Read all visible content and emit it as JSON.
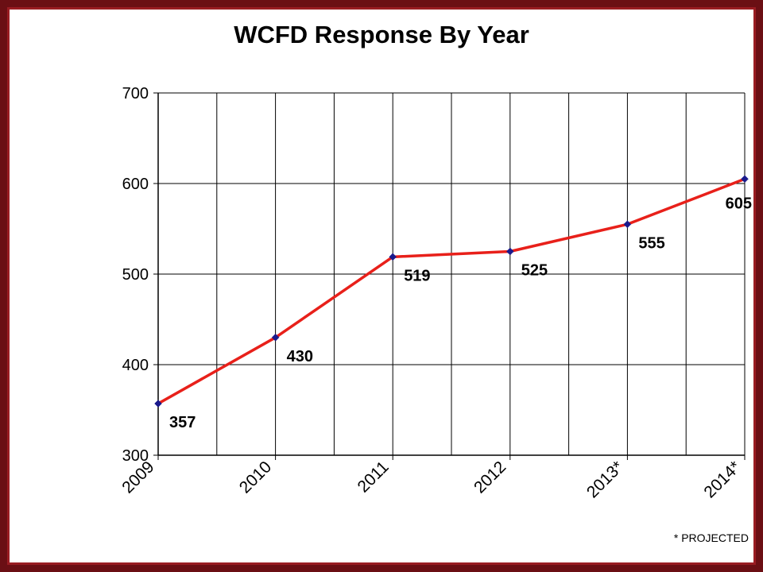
{
  "chart_data": {
    "type": "line",
    "title": "WCFD Response By Year",
    "xlabel": "",
    "ylabel": "",
    "categories": [
      "2009",
      "2010",
      "2011",
      "2012",
      "2013*",
      "2014*"
    ],
    "series": [
      {
        "values": [
          357,
          430,
          519,
          525,
          555,
          605
        ],
        "color": "#e8201a",
        "marker_color": "#1a1a8c"
      }
    ],
    "data_labels": [
      "357",
      "430",
      "519",
      "525",
      "555",
      "605"
    ],
    "ylim": [
      300,
      700
    ],
    "yticks": [
      "300",
      "400",
      "500",
      "600",
      "700"
    ],
    "grid": true,
    "legend": "none",
    "footnote": "* PROJECTED"
  },
  "colors": {
    "frame": "#6b0f14",
    "line": "#e8201a",
    "marker": "#1a1a8c",
    "grid": "#000000"
  }
}
